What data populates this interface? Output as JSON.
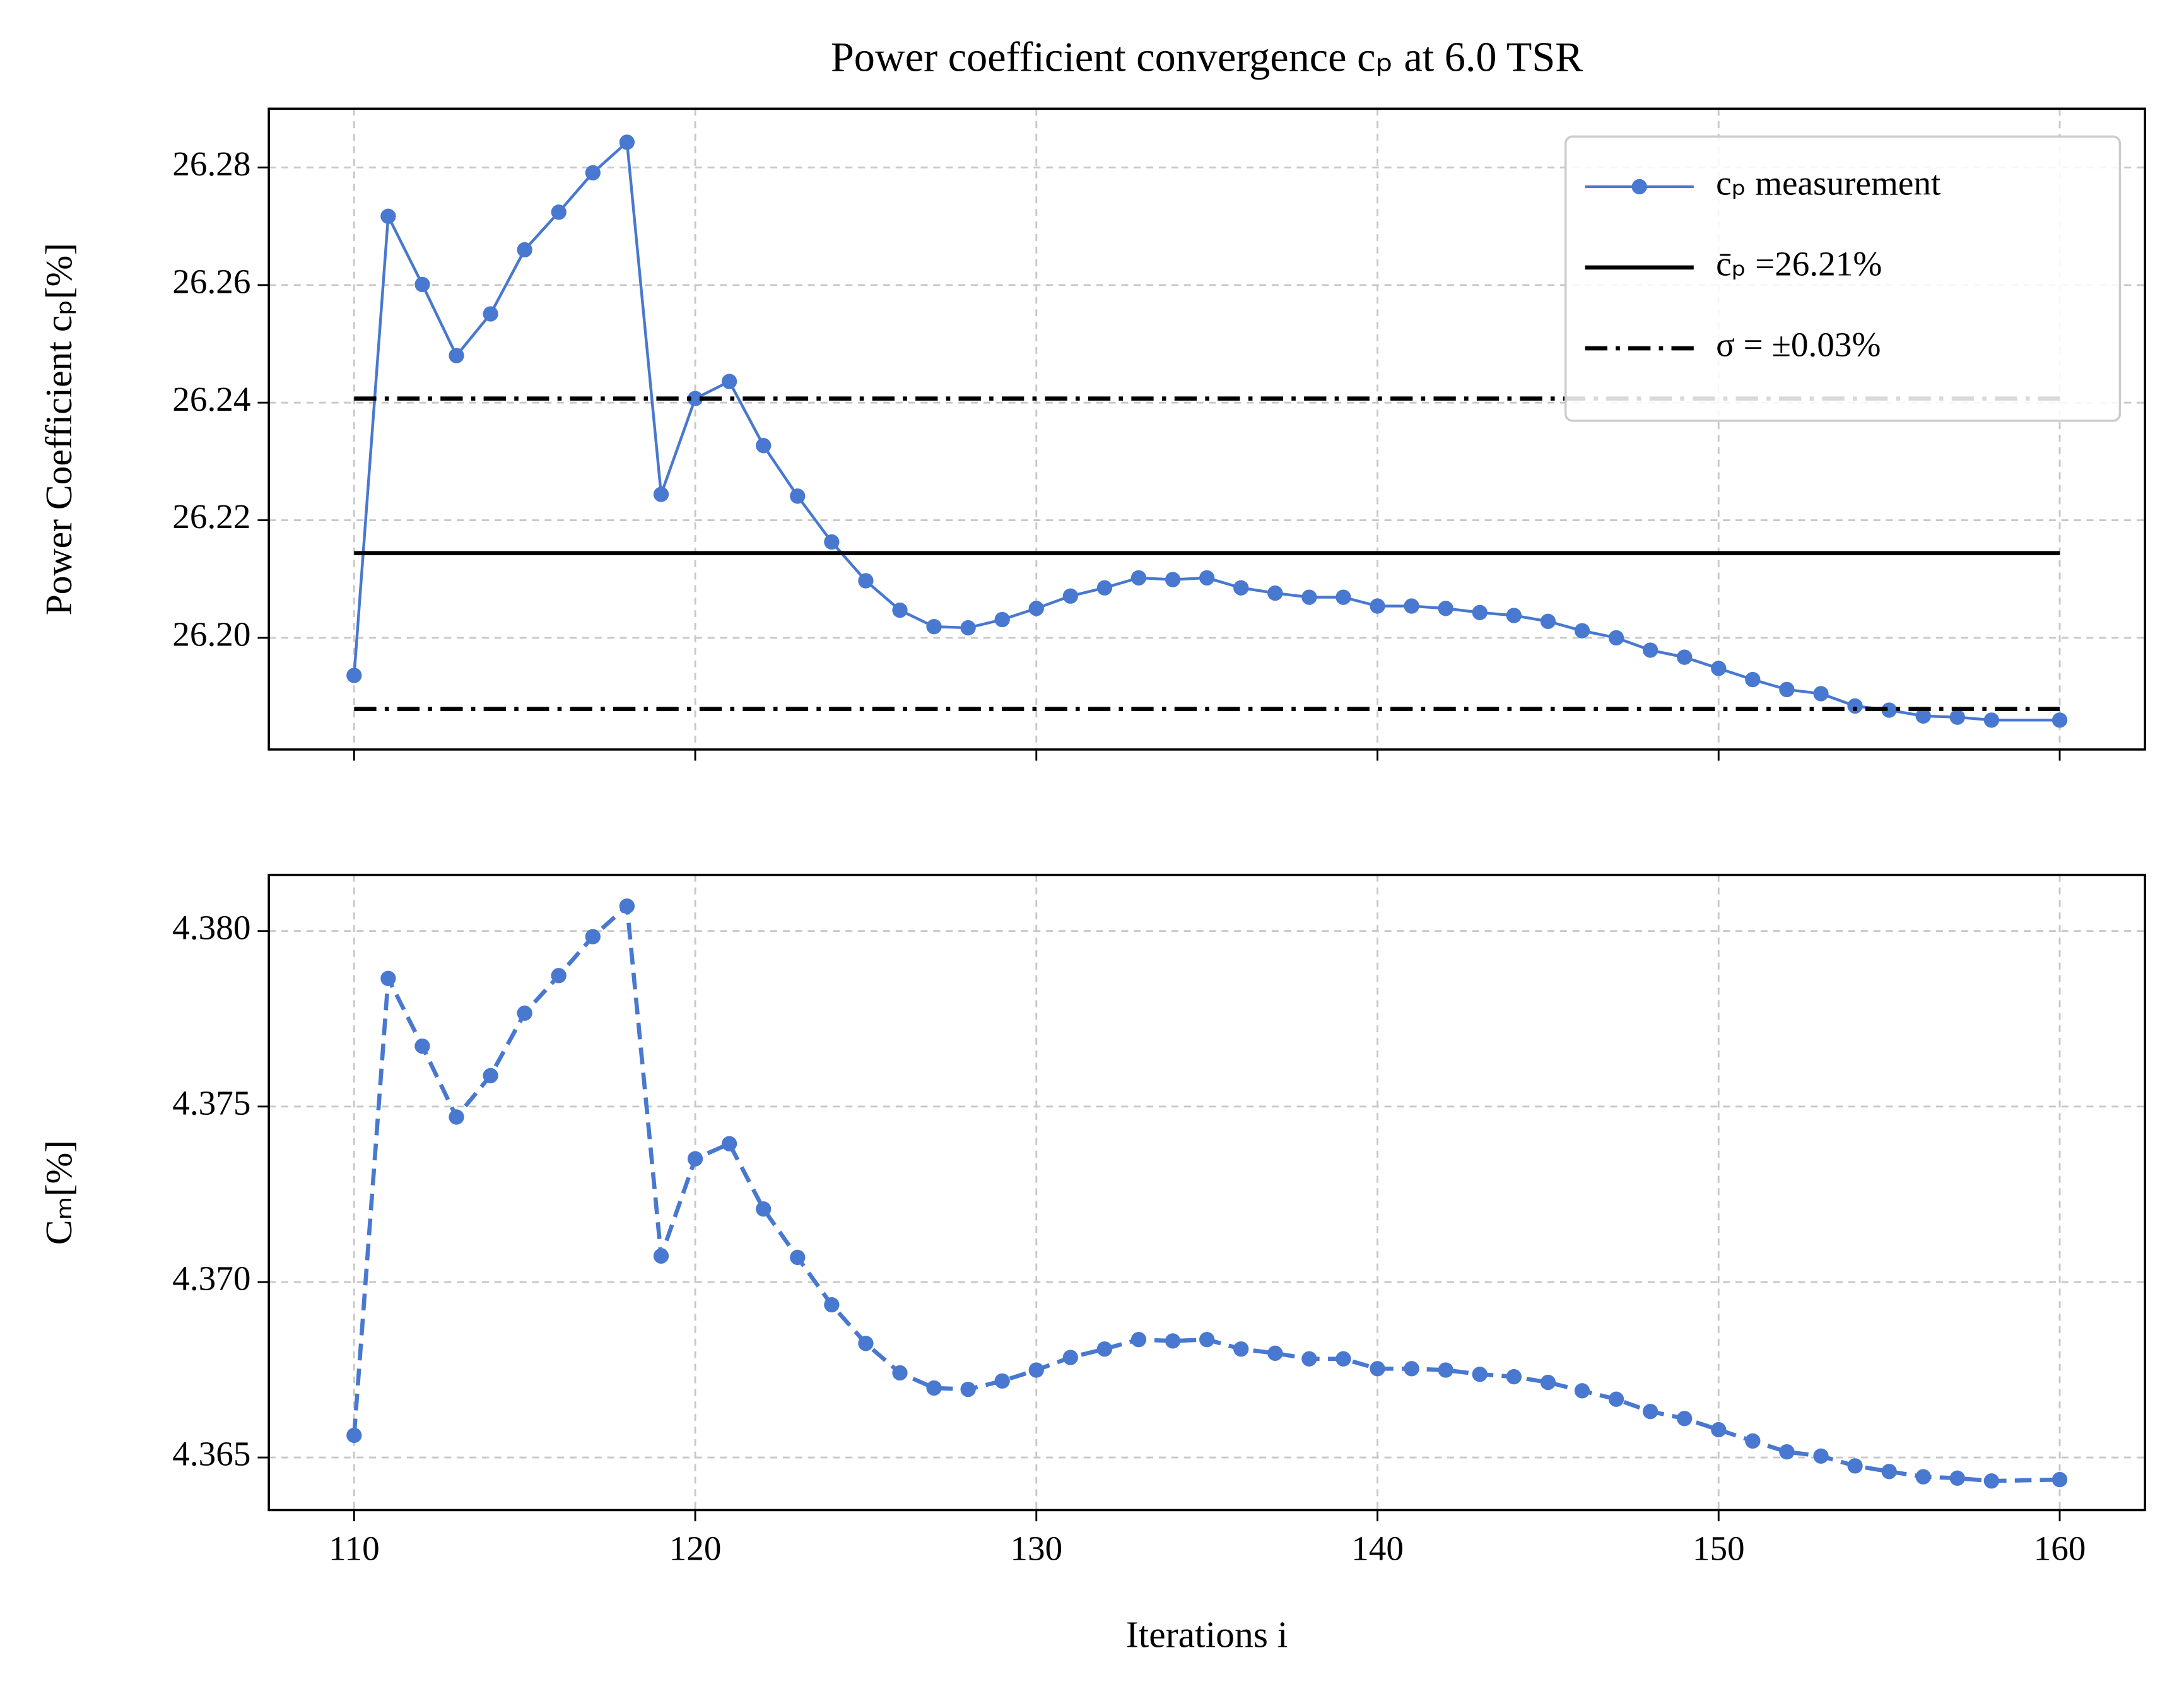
{
  "chart_data": [
    {
      "type": "line",
      "title": "Power coefficient convergence cₚ at 6.0 TSR",
      "ylabel": "Power Coefficient cₚ[%]",
      "x": [
        110,
        111,
        112,
        113,
        114,
        115,
        116,
        117,
        118,
        119,
        120,
        121,
        122,
        123,
        124,
        125,
        126,
        127,
        128,
        129,
        130,
        131,
        132,
        133,
        134,
        135,
        136,
        137,
        138,
        139,
        140,
        141,
        142,
        143,
        144,
        145,
        146,
        147,
        148,
        149,
        150,
        151,
        152,
        153,
        154,
        155,
        156,
        157,
        158,
        160
      ],
      "series": [
        {
          "name": "cₚ measurement",
          "color": "#4878cf",
          "linestyle": "solid",
          "marker": true,
          "values": [
            26.1936,
            26.2717,
            26.2601,
            26.248,
            26.2551,
            26.266,
            26.2724,
            26.2791,
            26.2843,
            26.2244,
            26.2407,
            26.2436,
            26.2327,
            26.2241,
            26.2163,
            26.2097,
            26.2047,
            26.2019,
            26.2017,
            26.2031,
            26.205,
            26.2071,
            26.2085,
            26.2102,
            26.2099,
            26.2102,
            26.2085,
            26.2076,
            26.2069,
            26.2069,
            26.2054,
            26.2054,
            26.205,
            26.2043,
            26.2038,
            26.2028,
            26.2012,
            26.2,
            26.1979,
            26.1967,
            26.1948,
            26.1929,
            26.1912,
            26.1905,
            26.1884,
            26.1877,
            26.1867,
            26.1865,
            26.186,
            26.186
          ]
        },
        {
          "name": "c̄ₚ =26.21%",
          "color": "#000000",
          "linestyle": "solid",
          "levels": [
            26.2144
          ]
        },
        {
          "name": "σ = ±0.03%",
          "color": "#000000",
          "linestyle": "dashdot",
          "levels": [
            26.2407,
            26.1879
          ]
        }
      ],
      "xlim": [
        107.5,
        162.5
      ],
      "xticks": [
        110,
        120,
        130,
        140,
        150,
        160
      ],
      "show_xtick_labels": false,
      "ylim": [
        26.181,
        26.29
      ],
      "yticks": [
        {
          "value": 26.2,
          "label": "26.20"
        },
        26.22,
        26.24,
        26.26,
        26.28
      ],
      "grid": true,
      "legend": "upper right"
    },
    {
      "type": "line",
      "ylabel": "Cₘ[%]",
      "xlabel": "Iterations i",
      "x": [
        110,
        111,
        112,
        113,
        114,
        115,
        116,
        117,
        118,
        119,
        120,
        121,
        122,
        123,
        124,
        125,
        126,
        127,
        128,
        129,
        130,
        131,
        132,
        133,
        134,
        135,
        136,
        137,
        138,
        139,
        140,
        141,
        142,
        143,
        144,
        145,
        146,
        147,
        148,
        149,
        150,
        151,
        152,
        153,
        154,
        155,
        156,
        157,
        158,
        160
      ],
      "series": [
        {
          "color": "#4878cf",
          "linestyle": "dashed",
          "marker": true,
          "values": [
            4.36563,
            4.37865,
            4.37672,
            4.3747,
            4.37588,
            4.37766,
            4.37873,
            4.37984,
            4.38071,
            4.37074,
            4.37351,
            4.37394,
            4.37208,
            4.3707,
            4.36935,
            4.36825,
            4.36741,
            4.36698,
            4.36694,
            4.36718,
            4.36749,
            4.36785,
            4.36809,
            4.36836,
            4.36832,
            4.36836,
            4.36809,
            4.36797,
            4.36781,
            4.36781,
            4.36753,
            4.36753,
            4.36749,
            4.36737,
            4.3673,
            4.36714,
            4.3669,
            4.36666,
            4.36631,
            4.36611,
            4.36579,
            4.36547,
            4.36516,
            4.36504,
            4.36476,
            4.3646,
            4.36445,
            4.36441,
            4.36433,
            4.36437
          ]
        }
      ],
      "xlim": [
        107.5,
        162.5
      ],
      "xticks": [
        110,
        120,
        130,
        140,
        150,
        160
      ],
      "show_xtick_labels": true,
      "ylim": [
        4.3635,
        4.3816
      ],
      "yticks": [
        4.365,
        {
          "value": 4.37,
          "label": "4.370"
        },
        4.375,
        {
          "value": 4.38,
          "label": "4.380"
        }
      ],
      "grid": true
    }
  ]
}
